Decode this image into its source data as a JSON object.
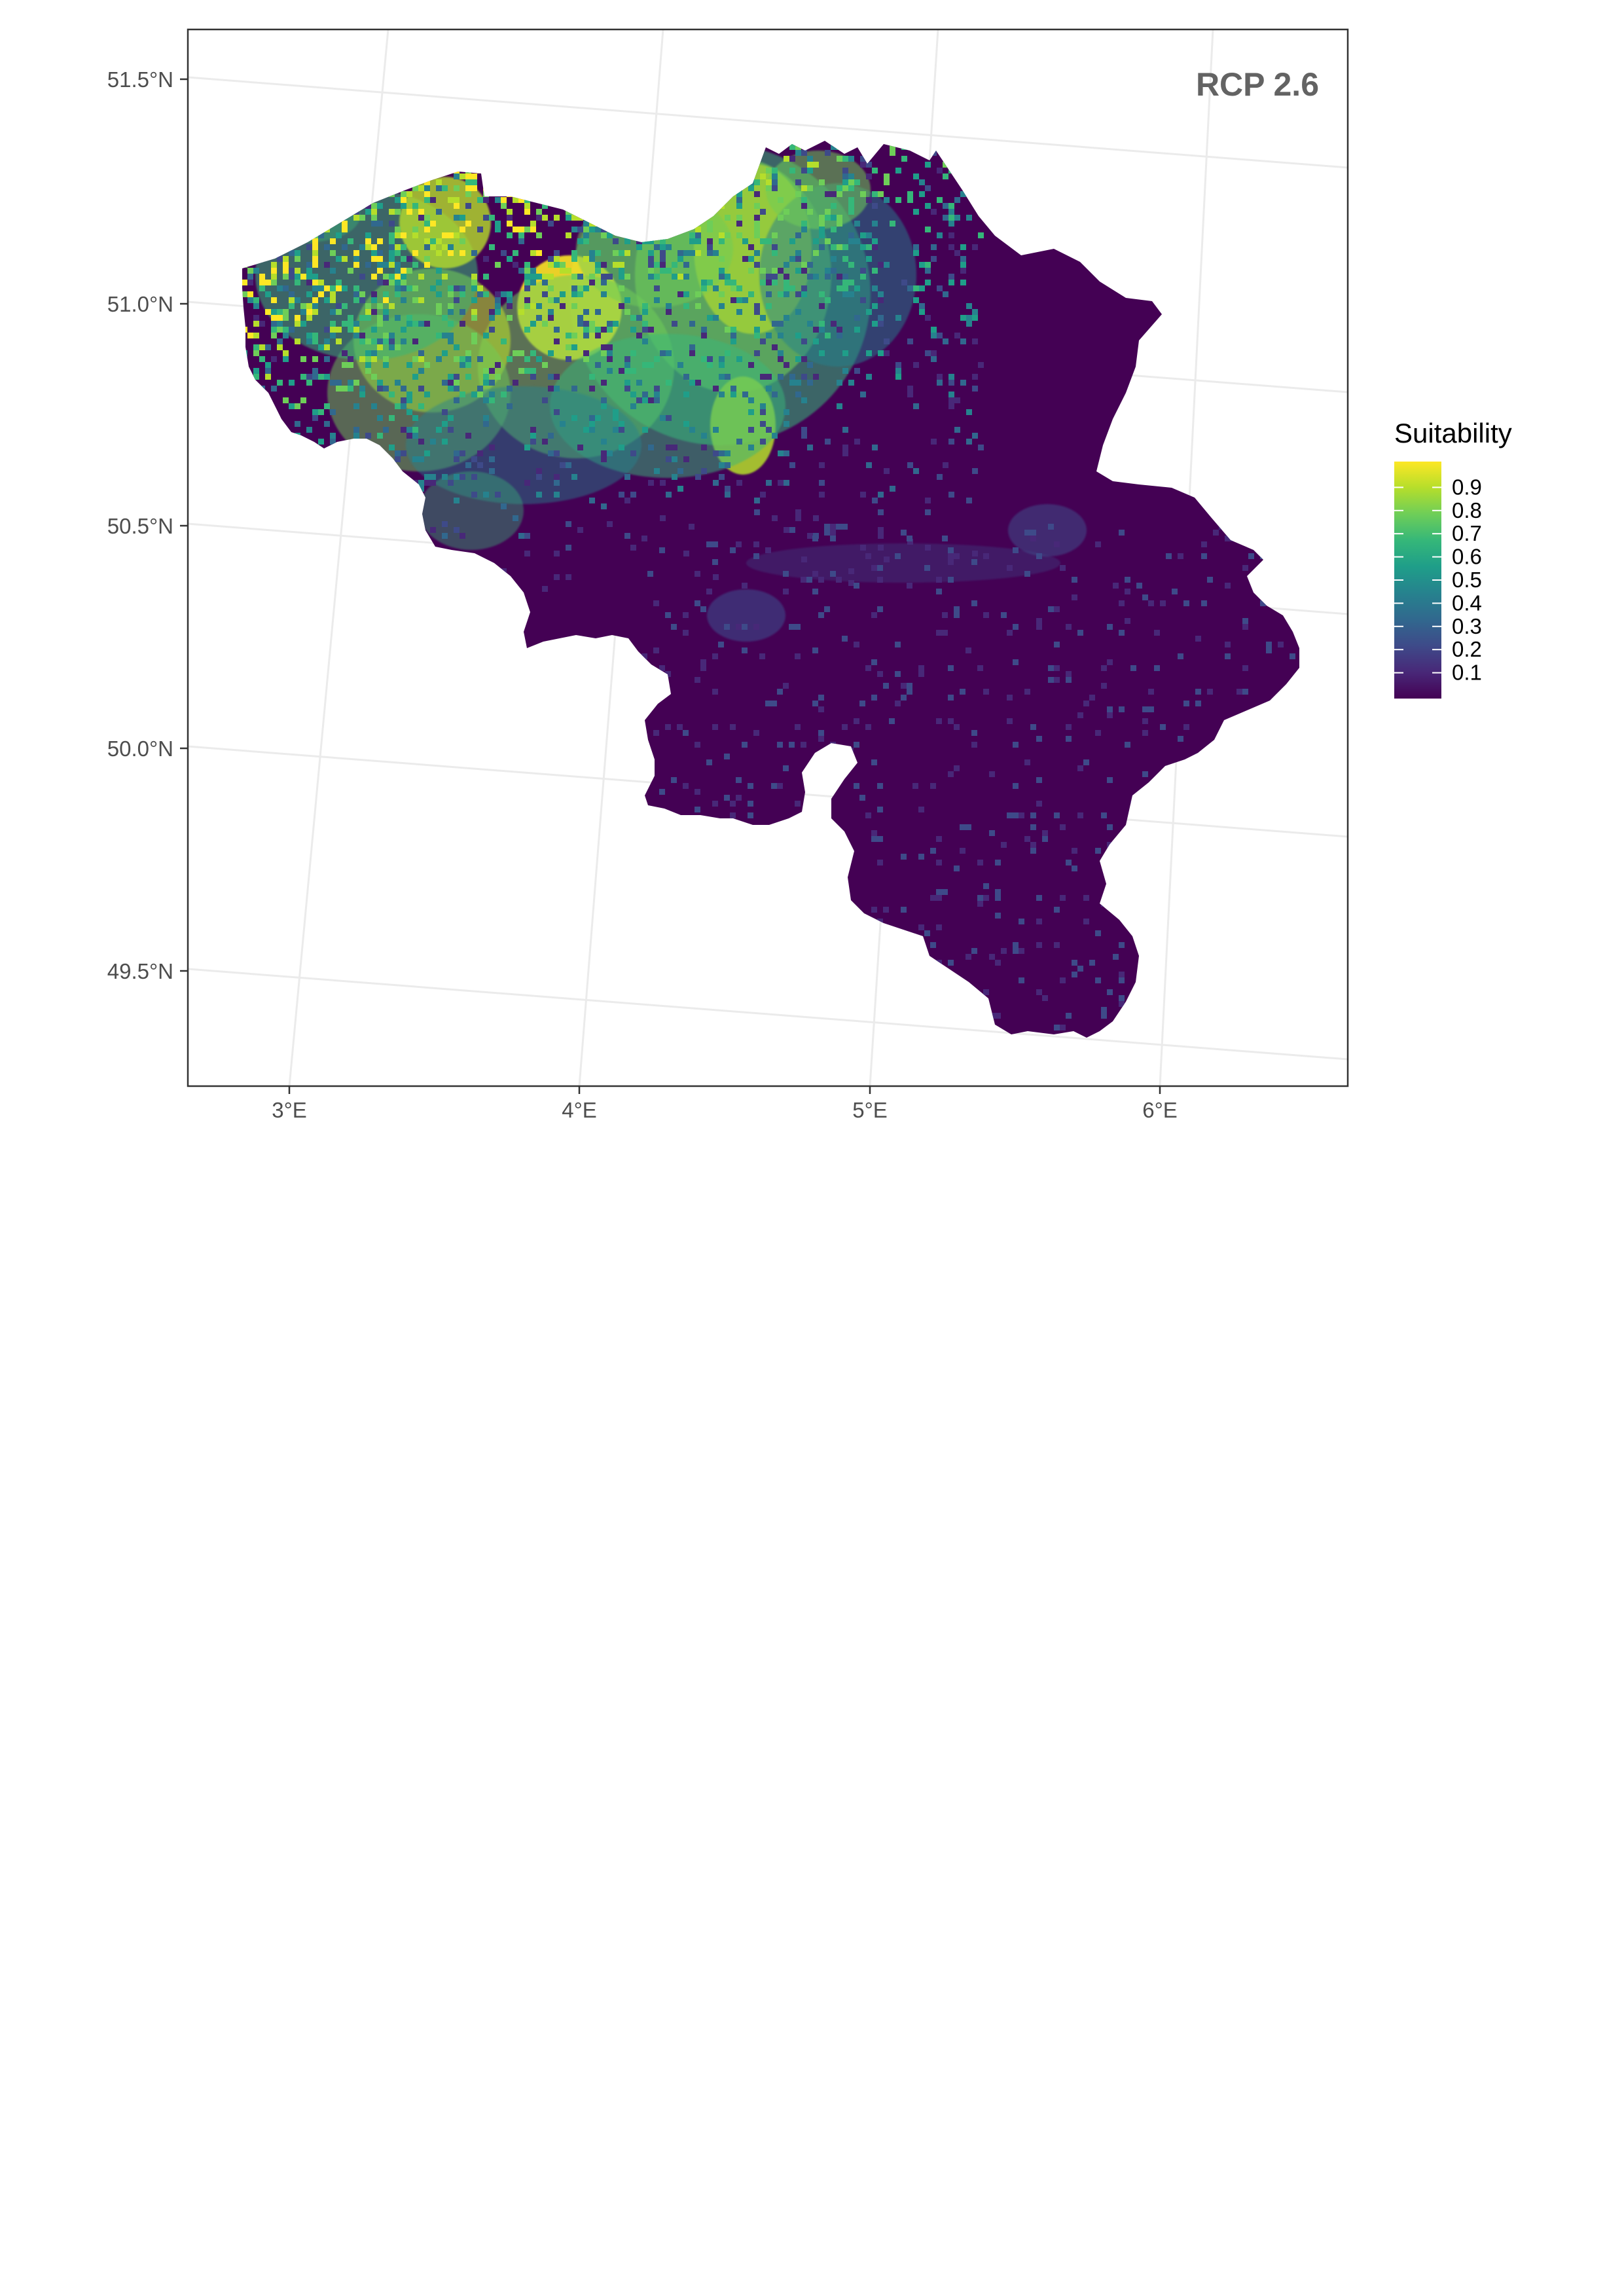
{
  "panel_label": "RCP 2.6",
  "legend": {
    "title": "Suitability",
    "breaks": [
      "0.9",
      "0.8",
      "0.7",
      "0.6",
      "0.5",
      "0.4",
      "0.3",
      "0.2",
      "0.1"
    ],
    "colors": [
      "#440154",
      "#482878",
      "#3e4a89",
      "#31688e",
      "#26828e",
      "#1f9e89",
      "#35b779",
      "#6ece58",
      "#b5de2b",
      "#fde725"
    ]
  },
  "axes": {
    "lat_labels": [
      "51.5°N",
      "51.0°N",
      "50.5°N",
      "50.0°N",
      "49.5°N"
    ],
    "lon_labels": [
      "3°E",
      "4°E",
      "5°E",
      "6°E"
    ]
  },
  "colors": {
    "low": "#440154",
    "high": "#fde725",
    "grid": "#ebebeb",
    "frame": "#333333"
  },
  "chart_data": {
    "type": "heatmap",
    "title": "",
    "scale": {
      "name": "Suitability",
      "min": 0.0,
      "max": 1.0,
      "palette": "viridis"
    },
    "xlim": [
      2.65,
      6.65
    ],
    "ylim": [
      49.25,
      51.62
    ],
    "description_values": {
      "high_suitability_regions": [
        {
          "lon": 3.95,
          "lat": 51.05,
          "value": 0.95
        },
        {
          "lon": 4.45,
          "lat": 50.85,
          "value": 0.85
        },
        {
          "lon": 4.4,
          "lat": 51.2,
          "value": 0.9
        },
        {
          "lon": 3.2,
          "lat": 51.2,
          "value": 0.85
        },
        {
          "lon": 3.5,
          "lat": 50.85,
          "value": 0.8
        }
      ],
      "low_suitability_regions": [
        {
          "lon": 5.5,
          "lat": 50.2,
          "value": 0.05
        },
        {
          "lon": 5.8,
          "lat": 49.8,
          "value": 0.03
        },
        {
          "lon": 4.8,
          "lat": 50.1,
          "value": 0.07
        }
      ]
    }
  }
}
